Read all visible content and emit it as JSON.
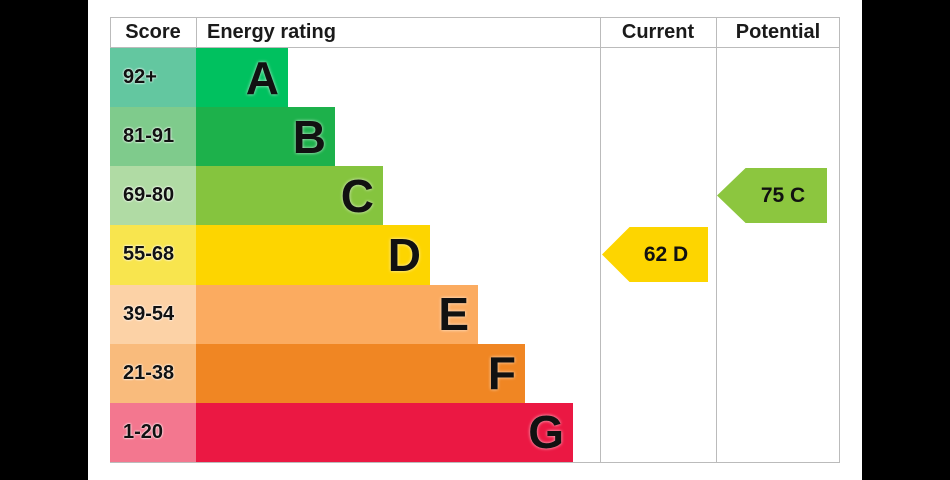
{
  "header": {
    "score": "Score",
    "energy_rating": "Energy rating",
    "current": "Current",
    "potential": "Potential"
  },
  "colors": {
    "page_background": "#000000",
    "panel_background": "#ffffff",
    "table_border": "#bbbbbb",
    "text": "#111111"
  },
  "chart_data": {
    "type": "bar",
    "title": "Energy rating",
    "orientation": "horizontal-stepped",
    "legend_position": "none",
    "grid": false,
    "categories": [
      "A",
      "B",
      "C",
      "D",
      "E",
      "F",
      "G"
    ],
    "bands": [
      {
        "letter": "A",
        "score_range": "92+",
        "bar_fraction": 0.228,
        "cell_color": "#63c7a0",
        "bar_color": "#00c15f"
      },
      {
        "letter": "B",
        "score_range": "81-91",
        "bar_fraction": 0.344,
        "cell_color": "#7fcb8c",
        "bar_color": "#1db14b"
      },
      {
        "letter": "C",
        "score_range": "69-80",
        "bar_fraction": 0.463,
        "cell_color": "#b0dba4",
        "bar_color": "#85c43e"
      },
      {
        "letter": "D",
        "score_range": "55-68",
        "bar_fraction": 0.579,
        "cell_color": "#f8e54e",
        "bar_color": "#fdd500"
      },
      {
        "letter": "E",
        "score_range": "39-54",
        "bar_fraction": 0.698,
        "cell_color": "#fcd2a6",
        "bar_color": "#fbab60"
      },
      {
        "letter": "F",
        "score_range": "21-38",
        "bar_fraction": 0.814,
        "cell_color": "#f9bb7c",
        "bar_color": "#f08623"
      },
      {
        "letter": "G",
        "score_range": "1-20",
        "bar_fraction": 0.933,
        "cell_color": "#f3778f",
        "bar_color": "#eb1843"
      }
    ],
    "current": {
      "value": 62,
      "band": "D",
      "label": "62 D",
      "color": "#fdd500",
      "row_index": 3
    },
    "potential": {
      "value": 75,
      "band": "C",
      "label": "75 C",
      "color": "#8cc63f",
      "row_index": 2
    }
  }
}
